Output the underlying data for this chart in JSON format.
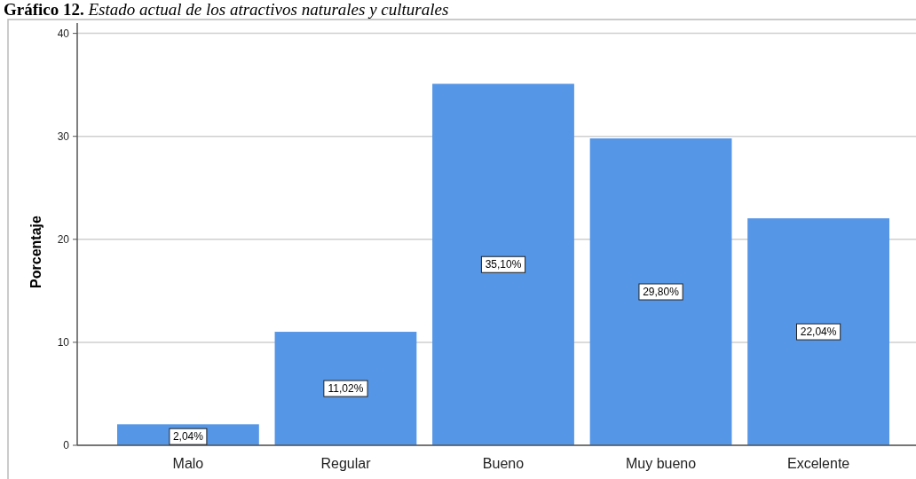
{
  "chart_data": {
    "type": "bar",
    "title": "Gráfico 12. Estado actual de los atractivos naturales y culturales",
    "ylabel": "Porcentaje",
    "categories": [
      "Malo",
      "Regular",
      "Bueno",
      "Muy bueno",
      "Excelente"
    ],
    "values": [
      2.04,
      11.02,
      35.1,
      29.8,
      22.04
    ],
    "value_labels": [
      "2,04%",
      "11,02%",
      "35,10%",
      "29,80%",
      "22,04%"
    ],
    "color": "#5596e6",
    "ylim": [
      0,
      41
    ],
    "yticks": [
      0,
      10,
      20,
      30,
      40
    ],
    "grid": "y"
  }
}
